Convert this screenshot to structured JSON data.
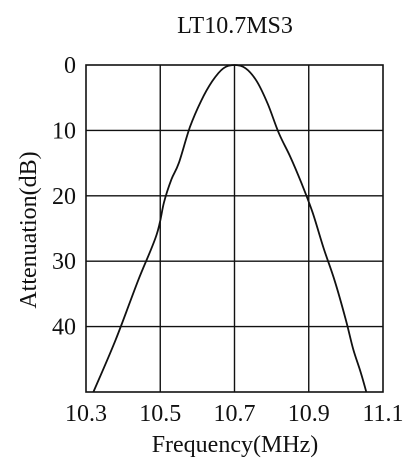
{
  "chart_data": {
    "type": "line",
    "title": "LT10.7MS3",
    "xlabel": "Frequency(MHz)",
    "ylabel": "Attenuation(dB)",
    "xlim": [
      10.3,
      11.1
    ],
    "ylim": [
      0,
      50
    ],
    "y_inverted": true,
    "grid": true,
    "x_ticks": [
      10.3,
      10.5,
      10.7,
      10.9,
      11.1
    ],
    "x_tick_labels": [
      "10.3",
      "10.5",
      "10.7",
      "10.9",
      "11.1"
    ],
    "y_ticks": [
      0,
      10,
      20,
      30,
      40
    ],
    "y_tick_labels": [
      "0",
      "10",
      "20",
      "30",
      "40"
    ],
    "line_color": "#111111",
    "series": [
      {
        "x": [
          10.32,
          10.38,
          10.44,
          10.49,
          10.51,
          10.53,
          10.55,
          10.58,
          10.61,
          10.64,
          10.67,
          10.7,
          10.73,
          10.76,
          10.79,
          10.82,
          10.85,
          10.88,
          10.91,
          10.94,
          10.97,
          11.0,
          11.02,
          11.04,
          11.055
        ],
        "y": [
          50,
          42,
          33,
          26,
          21,
          17.5,
          15,
          9.5,
          5.5,
          2.5,
          0.5,
          0,
          0.5,
          2.5,
          6,
          10.5,
          14,
          18,
          22.5,
          28,
          33,
          39,
          43.5,
          47,
          50
        ]
      }
    ]
  }
}
